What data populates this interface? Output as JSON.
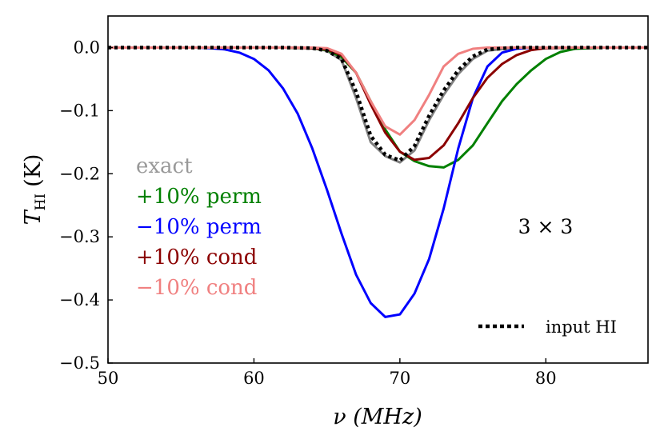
{
  "chart_data": {
    "type": "line",
    "xlabel": "ν (MHz)",
    "ylabel_main": "T",
    "ylabel_sub": "HI",
    "ylabel_unit": "(K)",
    "xlim": [
      50,
      87
    ],
    "ylim": [
      -0.5,
      0.05
    ],
    "xticks": [
      50,
      60,
      70,
      80
    ],
    "yticks": [
      0.0,
      -0.1,
      -0.2,
      -0.3,
      -0.4,
      -0.5
    ],
    "xtick_labels": [
      "50",
      "60",
      "70",
      "80"
    ],
    "ytick_labels": [
      "0.0",
      "−0.1",
      "−0.2",
      "−0.3",
      "−0.4",
      "−0.5"
    ],
    "grid": false,
    "annotation": "3 × 3",
    "input_legend_label": "input HI",
    "series": [
      {
        "name": "exact",
        "color": "#808080",
        "x": [
          50,
          55,
          60,
          62,
          64,
          65,
          66,
          67,
          68,
          69,
          70,
          71,
          72,
          73,
          74,
          75,
          76,
          78,
          80,
          85,
          87
        ],
        "values": [
          0,
          0,
          0,
          0,
          -0.001,
          -0.005,
          -0.02,
          -0.08,
          -0.15,
          -0.172,
          -0.182,
          -0.163,
          -0.115,
          -0.075,
          -0.042,
          -0.018,
          -0.005,
          0,
          0,
          0,
          0
        ]
      },
      {
        "name": "+10% perm",
        "color": "#008000",
        "x": [
          50,
          55,
          60,
          62,
          64,
          65,
          66,
          67,
          68,
          69,
          70,
          71,
          72,
          73,
          74,
          75,
          76,
          77,
          78,
          79,
          80,
          81,
          82,
          84,
          87
        ],
        "values": [
          0,
          0,
          0,
          0,
          -0.001,
          -0.004,
          -0.015,
          -0.04,
          -0.085,
          -0.13,
          -0.165,
          -0.18,
          -0.188,
          -0.19,
          -0.178,
          -0.155,
          -0.12,
          -0.085,
          -0.058,
          -0.036,
          -0.018,
          -0.007,
          -0.002,
          0,
          0
        ]
      },
      {
        "name": "−10% perm",
        "color": "#0000ff",
        "x": [
          50,
          52,
          54,
          56,
          57,
          58,
          59,
          60,
          61,
          62,
          63,
          64,
          65,
          66,
          67,
          68,
          69,
          70,
          71,
          72,
          73,
          74,
          75,
          76,
          77,
          78,
          79,
          80,
          81,
          82,
          84,
          87
        ],
        "values": [
          0,
          0,
          0,
          0,
          -0.001,
          -0.003,
          -0.008,
          -0.018,
          -0.036,
          -0.065,
          -0.105,
          -0.16,
          -0.225,
          -0.295,
          -0.36,
          -0.405,
          -0.427,
          -0.423,
          -0.39,
          -0.335,
          -0.255,
          -0.16,
          -0.08,
          -0.03,
          -0.008,
          -0.002,
          0,
          0,
          0,
          0,
          0,
          0
        ]
      },
      {
        "name": "+10% cond",
        "color": "#8b0000",
        "x": [
          50,
          55,
          60,
          62,
          64,
          65,
          66,
          67,
          68,
          69,
          70,
          71,
          72,
          73,
          74,
          75,
          76,
          77,
          78,
          79,
          80,
          82,
          87
        ],
        "values": [
          0,
          0,
          0,
          0,
          -0.001,
          -0.003,
          -0.012,
          -0.04,
          -0.09,
          -0.135,
          -0.165,
          -0.178,
          -0.175,
          -0.155,
          -0.12,
          -0.08,
          -0.048,
          -0.026,
          -0.012,
          -0.004,
          -0.001,
          0,
          0
        ]
      },
      {
        "name": "−10% cond",
        "color": "#f08080",
        "x": [
          50,
          55,
          60,
          62,
          64,
          65,
          66,
          67,
          68,
          69,
          70,
          71,
          72,
          73,
          74,
          75,
          76,
          78,
          80,
          87
        ],
        "values": [
          0,
          0,
          0,
          0,
          0,
          -0.001,
          -0.01,
          -0.04,
          -0.085,
          -0.125,
          -0.138,
          -0.115,
          -0.075,
          -0.03,
          -0.01,
          -0.002,
          0,
          0,
          0,
          0
        ]
      },
      {
        "name": "input HI",
        "color": "#000000",
        "dotted": true,
        "x": [
          50,
          55,
          60,
          62,
          64,
          65,
          66,
          67,
          68,
          69,
          70,
          71,
          72,
          73,
          74,
          75,
          76,
          78,
          80,
          85,
          87
        ],
        "values": [
          0,
          0,
          0,
          0,
          -0.001,
          -0.005,
          -0.018,
          -0.07,
          -0.14,
          -0.17,
          -0.179,
          -0.156,
          -0.108,
          -0.068,
          -0.036,
          -0.014,
          -0.003,
          0,
          0,
          0,
          0
        ]
      }
    ],
    "legend": [
      {
        "label": "exact",
        "color": "#999999"
      },
      {
        "label": "+10% perm",
        "color": "#008000"
      },
      {
        "label": "−10% perm",
        "color": "#0000ff"
      },
      {
        "label": "+10% cond",
        "color": "#8b0000"
      },
      {
        "label": "−10% cond",
        "color": "#f08080"
      }
    ]
  }
}
